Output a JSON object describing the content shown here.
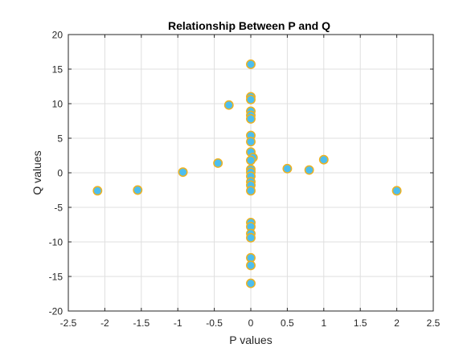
{
  "chart_data": {
    "type": "scatter",
    "title": "Relationship Between P and Q",
    "xlabel": "P values",
    "ylabel": "Q values",
    "xlim": [
      -2.5,
      2.5
    ],
    "ylim": [
      -20,
      20
    ],
    "xticks": [
      -2.5,
      -2,
      -1.5,
      -1,
      -0.5,
      0,
      0.5,
      1,
      1.5,
      2,
      2.5
    ],
    "yticks": [
      -20,
      -15,
      -10,
      -5,
      0,
      5,
      10,
      15,
      20
    ],
    "xtick_labels": [
      "-2.5",
      "-2",
      "-1.5",
      "-1",
      "-0.5",
      "0",
      "0.5",
      "1",
      "1.5",
      "2",
      "2.5"
    ],
    "ytick_labels": [
      "-20",
      "-15",
      "-10",
      "-5",
      "0",
      "5",
      "10",
      "15",
      "20"
    ],
    "grid": true,
    "marker_face_color": "#4DBEEE",
    "marker_edge_color": "#EDB120",
    "points": [
      {
        "x": 0,
        "y": 15.7
      },
      {
        "x": 0,
        "y": 11.0
      },
      {
        "x": 0,
        "y": 10.6
      },
      {
        "x": -0.3,
        "y": 9.8
      },
      {
        "x": 0,
        "y": 8.9
      },
      {
        "x": 0,
        "y": 8.3
      },
      {
        "x": 0,
        "y": 7.8
      },
      {
        "x": 0,
        "y": 5.4
      },
      {
        "x": 0,
        "y": 4.5
      },
      {
        "x": 0,
        "y": 3.0
      },
      {
        "x": 0.03,
        "y": 2.2
      },
      {
        "x": 0,
        "y": 1.8
      },
      {
        "x": -0.45,
        "y": 1.4
      },
      {
        "x": 1.0,
        "y": 1.9
      },
      {
        "x": 0.5,
        "y": 0.6
      },
      {
        "x": 0.8,
        "y": 0.4
      },
      {
        "x": 0,
        "y": 0.5
      },
      {
        "x": 0,
        "y": 0.1
      },
      {
        "x": -0.93,
        "y": 0.1
      },
      {
        "x": 0,
        "y": -0.5
      },
      {
        "x": 0,
        "y": -1.3
      },
      {
        "x": 0,
        "y": -1.8
      },
      {
        "x": 0,
        "y": -2.6
      },
      {
        "x": -2.1,
        "y": -2.6
      },
      {
        "x": -1.55,
        "y": -2.5
      },
      {
        "x": 2.0,
        "y": -2.6
      },
      {
        "x": 0,
        "y": -7.2
      },
      {
        "x": 0,
        "y": -7.8
      },
      {
        "x": 0,
        "y": -8.8
      },
      {
        "x": 0,
        "y": -9.4
      },
      {
        "x": 0,
        "y": -12.3
      },
      {
        "x": 0,
        "y": -13.4
      },
      {
        "x": 0,
        "y": -16.0
      }
    ]
  }
}
